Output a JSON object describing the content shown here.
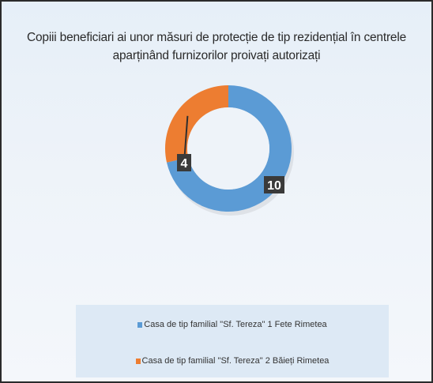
{
  "chart_data": {
    "type": "pie",
    "variant": "doughnut",
    "title": "Copiii beneficiari ai unor măsuri de protecție de tip rezidențial în centrele aparținând furnizorilor proivați autorizați",
    "categories": [
      "Casa de tip familial \"Sf. Tereza\" 1 Fete Rimetea",
      "Casa de tip familial \"Sf. Tereza\" 2 Băieți Rimetea"
    ],
    "values": [
      10,
      4
    ],
    "colors": [
      "#5b9bd5",
      "#ed7d31"
    ],
    "legend_position": "bottom",
    "data_labels": true
  }
}
